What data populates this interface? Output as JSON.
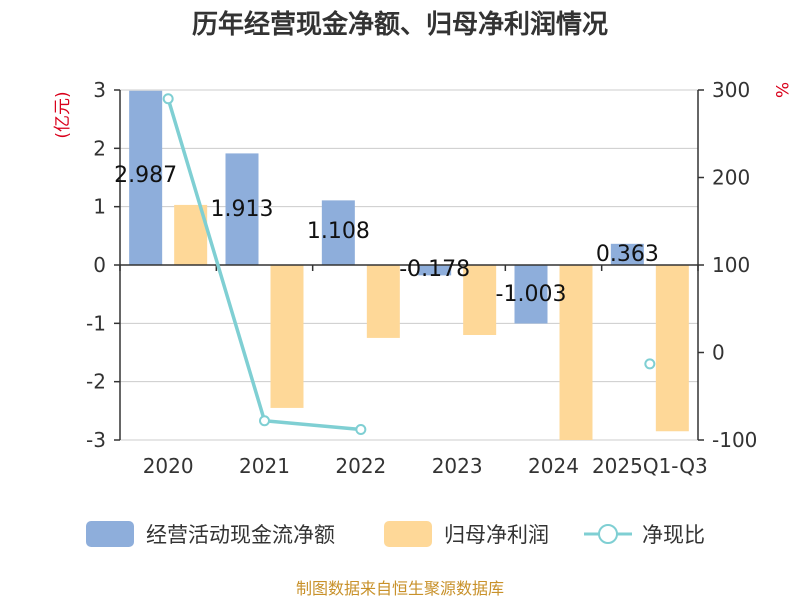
{
  "chart_data": {
    "type": "bar",
    "title": "历年经营现金净额、归母净利润情况",
    "categories": [
      "2020",
      "2021",
      "2022",
      "2023",
      "2024",
      "2025Q1-Q3"
    ],
    "series": [
      {
        "name": "经营活动现金流净额",
        "type": "bar",
        "axis": "left",
        "color": "#8eaedb",
        "values": [
          2.987,
          1.913,
          1.108,
          -0.178,
          -1.003,
          0.363
        ],
        "labels": [
          "2.987",
          "1.913",
          "1.108",
          "-0.178",
          "-1.003",
          "0.363"
        ]
      },
      {
        "name": "归母净利润",
        "type": "bar",
        "axis": "left",
        "color": "#fed898",
        "values": [
          1.03,
          -2.45,
          -1.25,
          -1.2,
          -3.0,
          -2.85
        ]
      },
      {
        "name": "净现比",
        "type": "line",
        "axis": "right",
        "color": "#7fcfd3",
        "values": [
          290,
          -78,
          -88,
          null,
          null,
          -13
        ]
      }
    ],
    "yleft": {
      "unit": "(亿元)",
      "min": -3,
      "max": 3,
      "ticks": [
        3,
        2,
        1,
        0,
        -1,
        -2,
        -3
      ]
    },
    "yright": {
      "unit": "%",
      "min": -100,
      "max": 300,
      "ticks": [
        300,
        200,
        100,
        0,
        -100
      ]
    },
    "legend_position": "bottom",
    "source": "制图数据来自恒生聚源数据库"
  }
}
